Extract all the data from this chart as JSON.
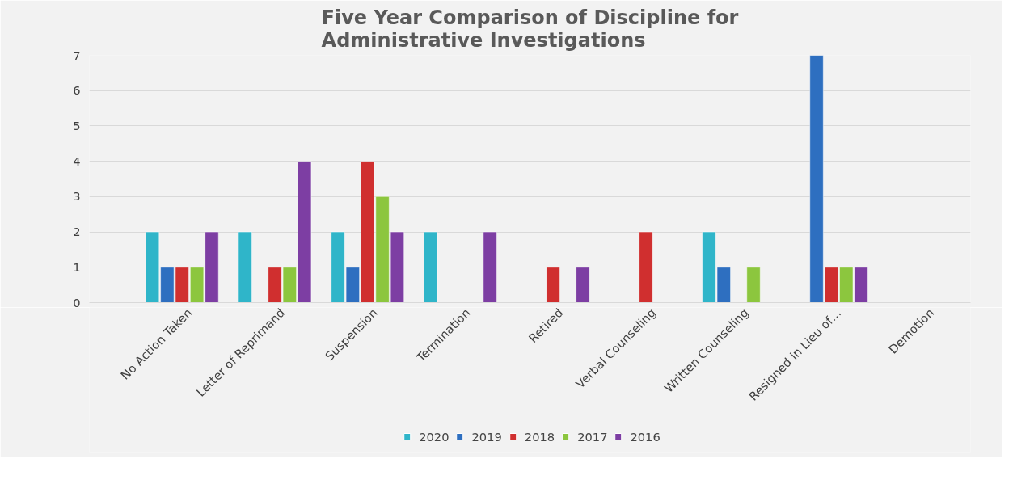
{
  "chart_data": {
    "type": "bar",
    "title": "Five Year Comparison of Discipline for Administrative Investigations",
    "categories": [
      "No Action Taken",
      "Letter of Reprimand",
      "Suspension",
      "Termination",
      "Retired",
      "Verbal Counseling",
      "Written Counseling",
      "Resigned in Lieu of…",
      "Demotion"
    ],
    "series": [
      {
        "name": "2020",
        "color": "#2fb5c9",
        "values": [
          2,
          2,
          2,
          2,
          null,
          null,
          2,
          null,
          null
        ]
      },
      {
        "name": "2019",
        "color": "#2e6fc0",
        "values": [
          1,
          null,
          1,
          null,
          null,
          null,
          1,
          7,
          null
        ]
      },
      {
        "name": "2018",
        "color": "#d02f2f",
        "values": [
          1,
          1,
          4,
          null,
          1,
          2,
          null,
          1,
          null
        ]
      },
      {
        "name": "2017",
        "color": "#8cc63e",
        "values": [
          1,
          1,
          3,
          null,
          null,
          null,
          1,
          1,
          null
        ]
      },
      {
        "name": "2016",
        "color": "#7d3ea3",
        "values": [
          2,
          4,
          2,
          2,
          1,
          null,
          null,
          1,
          null
        ]
      }
    ],
    "ylim": [
      0,
      7
    ],
    "yticks": [
      0,
      1,
      2,
      3,
      4,
      5,
      6,
      7
    ],
    "grid": "y",
    "legend": "bottom"
  }
}
